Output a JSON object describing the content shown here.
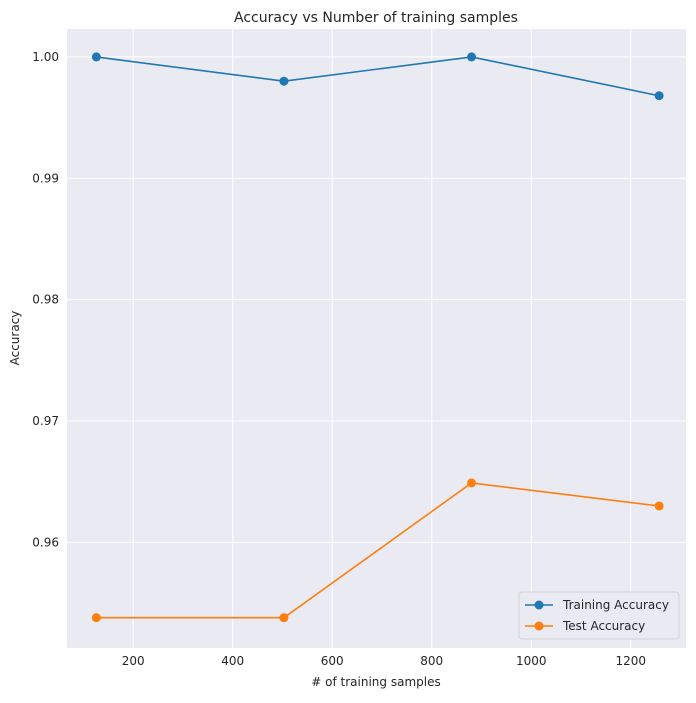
{
  "chart_data": {
    "type": "line",
    "title": "Accuracy vs Number of training samples",
    "xlabel": "# of training samples",
    "ylabel": "Accuracy",
    "x": [
      126,
      503,
      880,
      1257
    ],
    "series": [
      {
        "name": "Training Accuracy",
        "color": "#1f77b4",
        "values": [
          1.0,
          0.998,
          1.0,
          0.9968
        ]
      },
      {
        "name": "Test Accuracy",
        "color": "#ff7f0e",
        "values": [
          0.9538,
          0.9538,
          0.9649,
          0.963
        ]
      }
    ],
    "xlim": [
      67,
      1311
    ],
    "ylim": [
      0.9513,
      1.0023
    ],
    "xticks": [
      200,
      400,
      600,
      800,
      1000,
      1200
    ],
    "xtick_labels": [
      "200",
      "400",
      "600",
      "800",
      "1000",
      "1200"
    ],
    "yticks": [
      0.96,
      0.97,
      0.98,
      0.99,
      1.0
    ],
    "ytick_labels": [
      "0.96",
      "0.97",
      "0.98",
      "0.99",
      "1.00"
    ],
    "grid": true,
    "legend_position": "bottom-right",
    "background": "#eaeaf2"
  }
}
